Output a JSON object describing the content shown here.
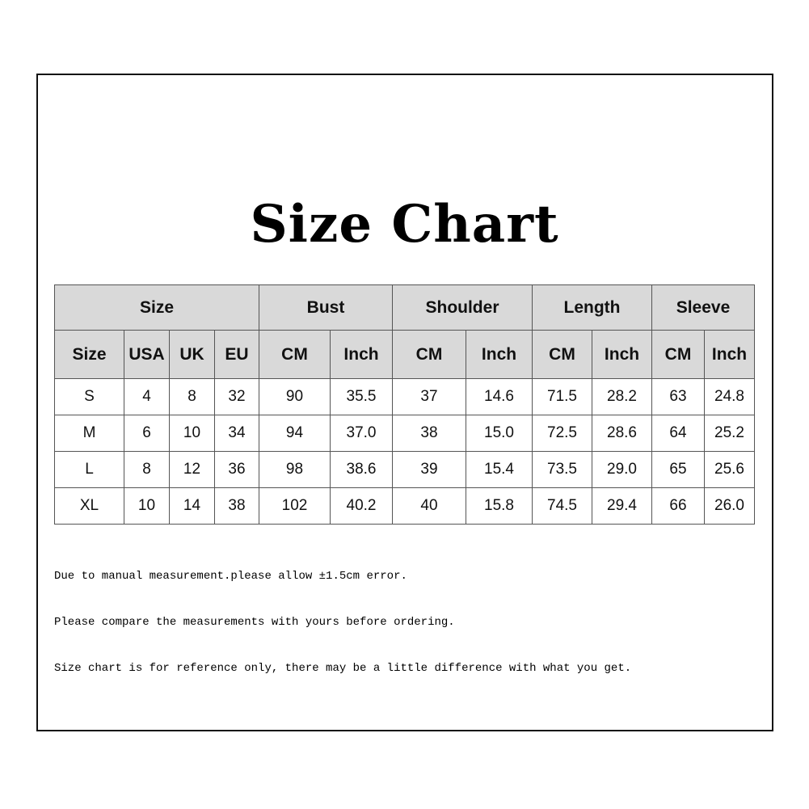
{
  "title": "Size Chart",
  "table": {
    "group_headers": [
      "Size",
      "Bust",
      "Shoulder",
      "Length",
      "Sleeve"
    ],
    "sub_headers": [
      "Size",
      "USA",
      "UK",
      "EU",
      "CM",
      "Inch",
      "CM",
      "Inch",
      "CM",
      "Inch",
      "CM",
      "Inch"
    ],
    "rows": [
      [
        "S",
        "4",
        "8",
        "32",
        "90",
        "35.5",
        "37",
        "14.6",
        "71.5",
        "28.2",
        "63",
        "24.8"
      ],
      [
        "M",
        "6",
        "10",
        "34",
        "94",
        "37.0",
        "38",
        "15.0",
        "72.5",
        "28.6",
        "64",
        "25.2"
      ],
      [
        "L",
        "8",
        "12",
        "36",
        "98",
        "38.6",
        "39",
        "15.4",
        "73.5",
        "29.0",
        "65",
        "25.6"
      ],
      [
        "XL",
        "10",
        "14",
        "38",
        "102",
        "40.2",
        "40",
        "15.8",
        "74.5",
        "29.4",
        "66",
        "26.0"
      ]
    ]
  },
  "notes": [
    "Due to manual measurement.please allow ±1.5cm error.",
    "Please compare the measurements with yours before ordering.",
    "Size chart is for reference only, there may be a little difference with what you get."
  ]
}
